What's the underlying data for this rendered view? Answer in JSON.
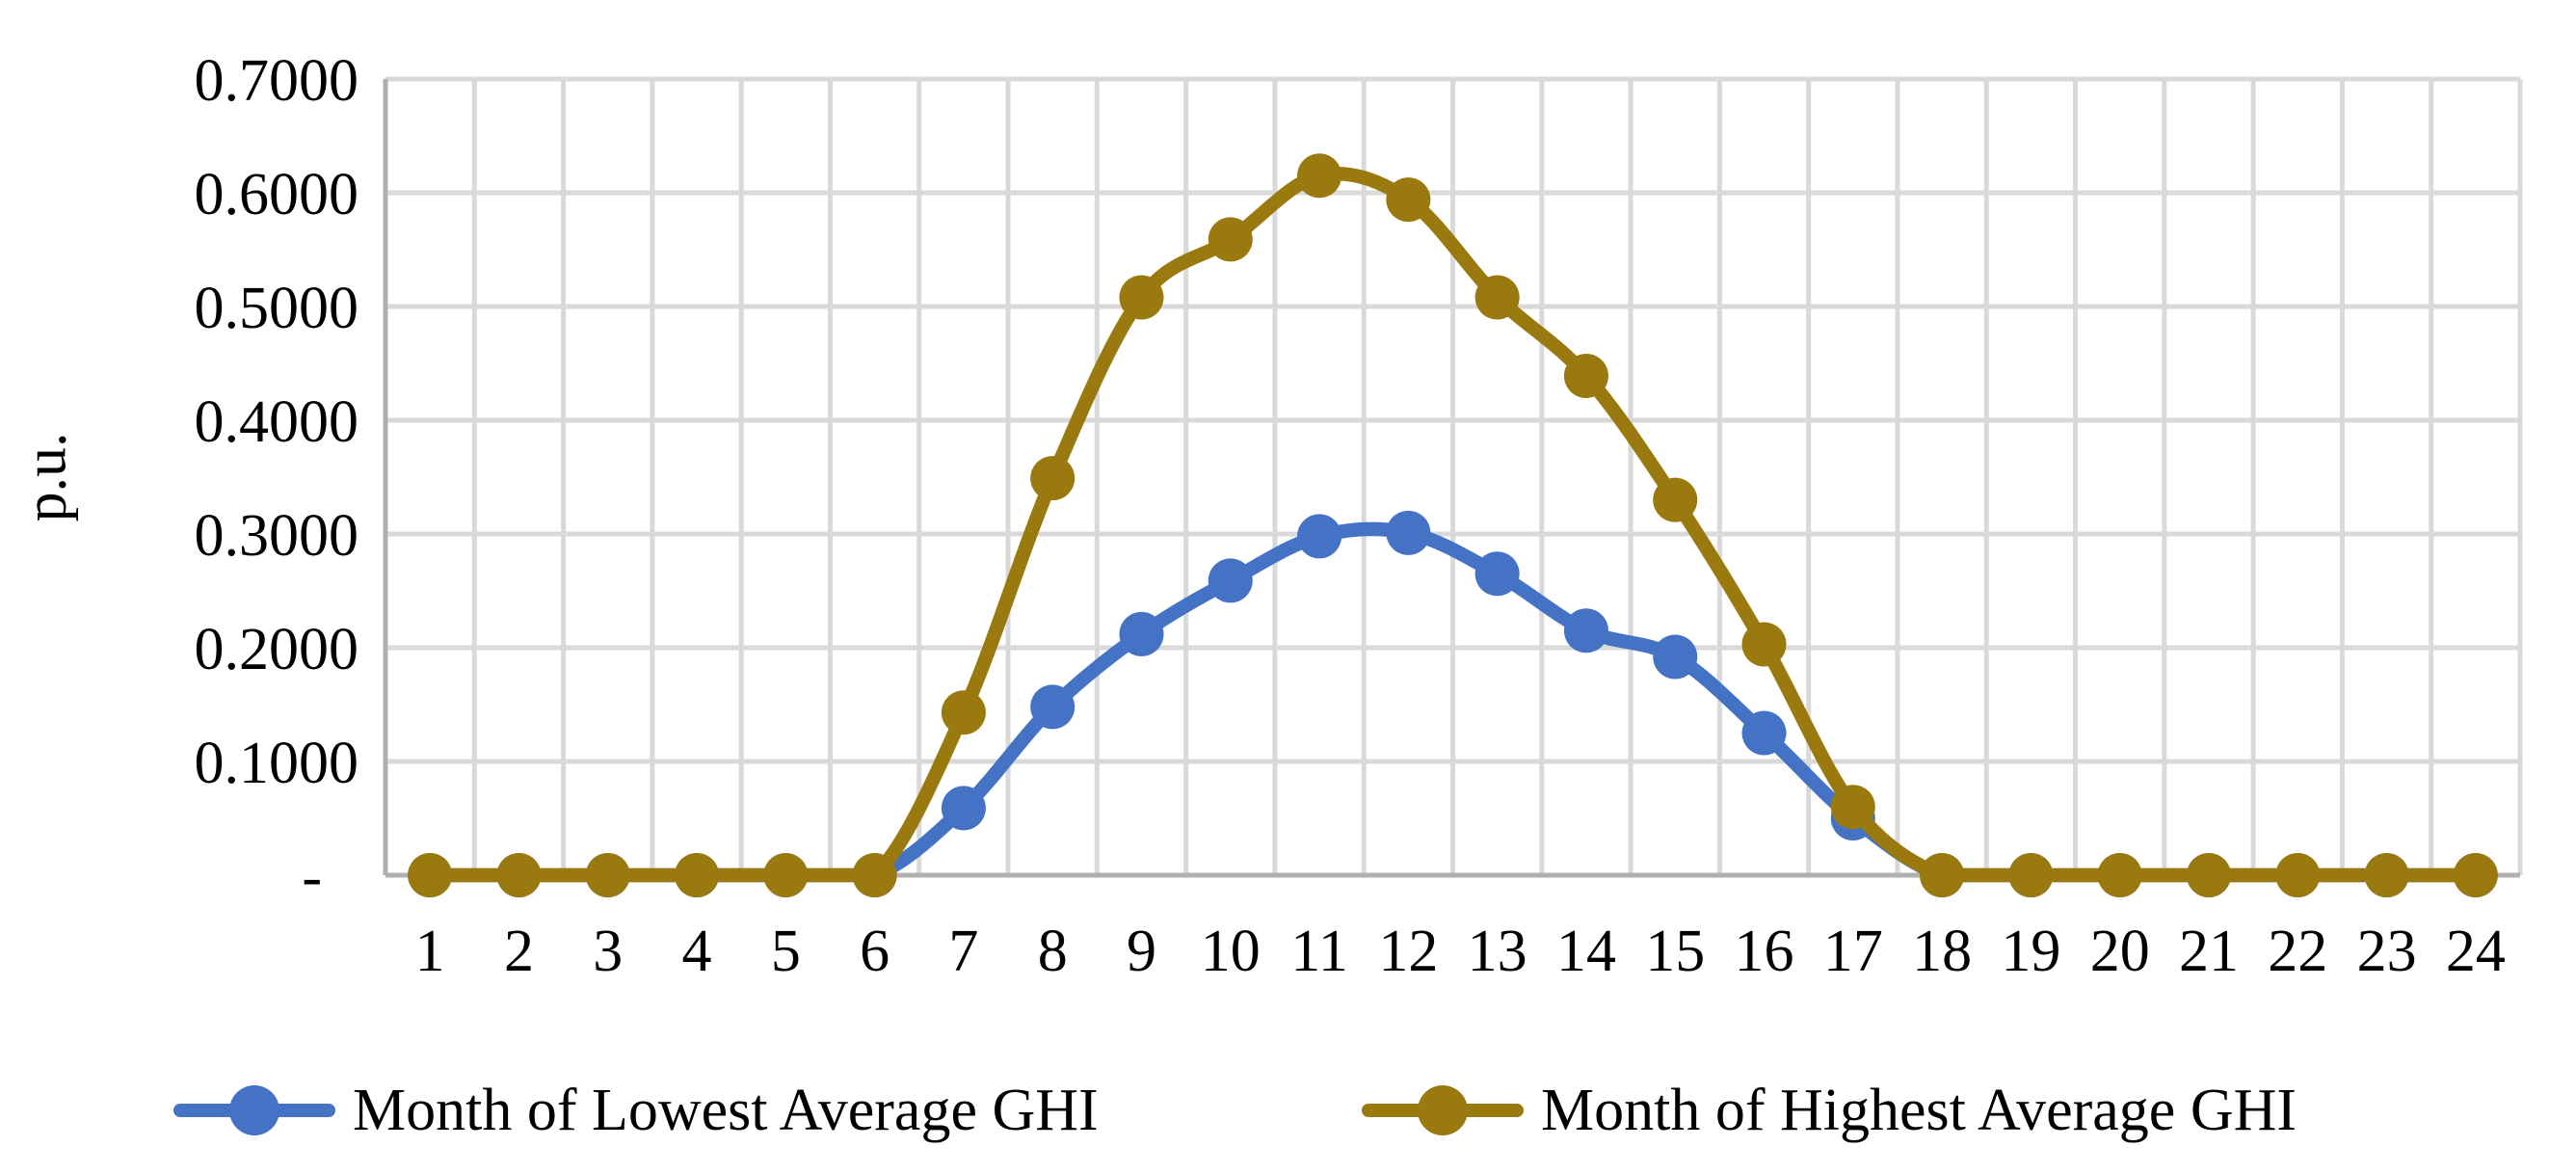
{
  "colors": {
    "background": "#FFFFFF",
    "gridline": "#D9D9D9",
    "axis_line": "#B0B0B0",
    "text": "#000000",
    "series_lowest": "#4472C4",
    "series_highest": "#9A7A0E"
  },
  "chart_data": {
    "type": "line",
    "title": "",
    "xlabel": "",
    "ylabel": "p.u.",
    "grid": true,
    "smoothed": true,
    "legend_position": "bottom",
    "ylim": [
      0,
      0.7
    ],
    "x": [
      1,
      2,
      3,
      4,
      5,
      6,
      7,
      8,
      9,
      10,
      11,
      12,
      13,
      14,
      15,
      16,
      17,
      18,
      19,
      20,
      21,
      22,
      23,
      24
    ],
    "x_tick_labels": [
      "1",
      "2",
      "3",
      "4",
      "5",
      "6",
      "7",
      "8",
      "9",
      "10",
      "11",
      "12",
      "13",
      "14",
      "15",
      "16",
      "17",
      "18",
      "19",
      "20",
      "21",
      "22",
      "23",
      "24"
    ],
    "y_ticks": [
      {
        "label": "0.7000",
        "value": 0.7
      },
      {
        "label": "0.6000",
        "value": 0.6
      },
      {
        "label": "0.5000",
        "value": 0.5
      },
      {
        "label": "0.4000",
        "value": 0.4
      },
      {
        "label": "0.3000",
        "value": 0.3
      },
      {
        "label": "0.2000",
        "value": 0.2
      },
      {
        "label": "0.1000",
        "value": 0.1
      },
      {
        "label": "-",
        "value": 0.0
      }
    ],
    "series": [
      {
        "name": "Month of Lowest Average GHI",
        "color": "#4472C4",
        "values": [
          0,
          0,
          0,
          0,
          0,
          0,
          0.059,
          0.148,
          0.212,
          0.259,
          0.298,
          0.301,
          0.265,
          0.215,
          0.192,
          0.125,
          0.05,
          0,
          0,
          0,
          0,
          0,
          0,
          0
        ]
      },
      {
        "name": "Month of Highest Average GHI",
        "color": "#9A7A0E",
        "values": [
          0,
          0,
          0,
          0,
          0,
          0,
          0.143,
          0.349,
          0.508,
          0.559,
          0.615,
          0.594,
          0.508,
          0.439,
          0.33,
          0.203,
          0.06,
          0,
          0,
          0,
          0,
          0,
          0,
          0
        ]
      }
    ]
  }
}
